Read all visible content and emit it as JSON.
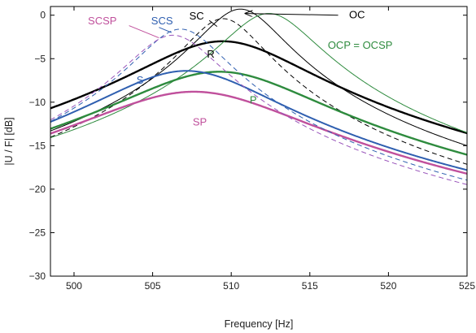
{
  "chart_data": {
    "type": "line",
    "xlabel": "Frequency   [Hz]",
    "ylabel": "|U / F|   [dB]",
    "xlim": [
      498.5,
      525
    ],
    "ylim": [
      -30,
      1
    ],
    "xticks": [
      500,
      505,
      510,
      515,
      520,
      525
    ],
    "yticks": [
      0,
      -5,
      -10,
      -15,
      -20,
      -25,
      -30
    ],
    "grid": false,
    "series": [
      {
        "name": "OC",
        "color": "#000000",
        "width": 1.0,
        "dash": "",
        "f0": 510.6,
        "peak": 0.7,
        "q": 105,
        "floor": -15.6
      },
      {
        "name": "SC",
        "color": "#000000",
        "width": 1.0,
        "dash": "6,4",
        "f0": 509.5,
        "peak": -0.4,
        "q": 110,
        "floor": -15.4
      },
      {
        "name": "R",
        "color": "#000000",
        "width": 2.4,
        "dash": "",
        "f0": 509.5,
        "peak": -3.0,
        "q": 52,
        "floor": -15.4
      },
      {
        "name": "OCP = OCSP",
        "color": "#2e8b3e",
        "width": 1.0,
        "dash": "",
        "f0": 512.4,
        "peak": 0.2,
        "q": 95,
        "floor": -17.2
      },
      {
        "name": "P",
        "color": "#2e8b3e",
        "width": 2.4,
        "dash": "",
        "f0": 509.3,
        "peak": -6.5,
        "q": 45,
        "floor": -16.1
      },
      {
        "name": "SP",
        "color": "#c0509c",
        "width": 2.4,
        "dash": "",
        "f0": 507.7,
        "peak": -8.8,
        "q": 40,
        "floor": -15.5
      },
      {
        "name": "S",
        "color": "#2f5fb0",
        "width": 2.0,
        "dash": "",
        "f0": 507.2,
        "peak": -6.4,
        "q": 50,
        "floor": -14.6
      },
      {
        "name": "SCS",
        "color": "#2f5fb0",
        "width": 1.0,
        "dash": "6,4",
        "f0": 506.8,
        "peak": -1.6,
        "q": 100,
        "floor": -14.0
      },
      {
        "name": "SCSP",
        "color": "#9955bb",
        "width": 1.0,
        "dash": "6,4",
        "f0": 506.3,
        "peak": -2.3,
        "q": 95,
        "floor": -14.9
      }
    ],
    "annotations": [
      {
        "text": "OC",
        "color": "#000000",
        "x": 518.0,
        "y": 0.0
      },
      {
        "text": "SC",
        "color": "#000000",
        "x": 507.8,
        "y": -0.1
      },
      {
        "text": "SCS",
        "color": "#2f5fb0",
        "x": 505.6,
        "y": -0.7
      },
      {
        "text": "SCSP",
        "color": "#c0509c",
        "x": 501.8,
        "y": -0.7
      },
      {
        "text": "R",
        "color": "#000000",
        "x": 508.7,
        "y": -4.5
      },
      {
        "text": "OCP = OCSP",
        "color": "#2e8b3e",
        "x": 518.2,
        "y": -3.5
      },
      {
        "text": "S",
        "color": "#2f5fb0",
        "x": 504.2,
        "y": -7.5
      },
      {
        "text": "P",
        "color": "#2e8b3e",
        "x": 511.4,
        "y": -9.8
      },
      {
        "text": "SP",
        "color": "#c0509c",
        "x": 508.0,
        "y": -12.3
      }
    ]
  }
}
